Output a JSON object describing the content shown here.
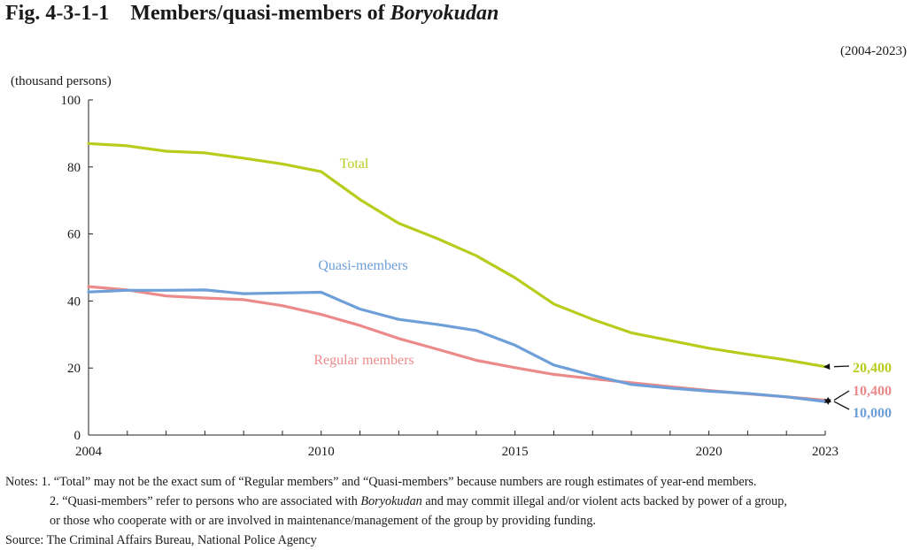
{
  "title": {
    "fig_label": "Fig. 4-3-1-1",
    "text": "Members/quasi-members of ",
    "text_italic": "Boryokudan"
  },
  "period": "(2004-2023)",
  "unit_label": "(thousand persons)",
  "chart_data": {
    "type": "line",
    "x": [
      2004,
      2005,
      2006,
      2007,
      2008,
      2009,
      2010,
      2011,
      2012,
      2013,
      2014,
      2015,
      2016,
      2017,
      2018,
      2019,
      2020,
      2021,
      2022,
      2023
    ],
    "x_ticks": [
      "2004",
      "2010",
      "2015",
      "2020",
      "2023"
    ],
    "y_ticks": [
      "0",
      "20",
      "40",
      "60",
      "80",
      "100"
    ],
    "ylim": [
      0,
      100
    ],
    "series": [
      {
        "name": "Total",
        "color": "#b8cc1e",
        "values": [
          87.0,
          86.3,
          84.7,
          84.2,
          82.6,
          80.9,
          78.6,
          70.3,
          63.2,
          58.6,
          53.5,
          46.9,
          39.1,
          34.5,
          30.5,
          28.2,
          25.9,
          24.1,
          22.4,
          20.4
        ],
        "end_value": "20,400"
      },
      {
        "name": "Quasi-members",
        "color": "#6e9fd8",
        "values": [
          42.7,
          43.2,
          43.2,
          43.3,
          42.2,
          42.4,
          42.6,
          37.6,
          34.5,
          33.0,
          31.2,
          26.8,
          20.9,
          17.8,
          15.1,
          14.0,
          13.1,
          12.4,
          11.4,
          10.0
        ],
        "end_value": "10,000"
      },
      {
        "name": "Regular members",
        "color": "#ec8a8a",
        "values": [
          44.3,
          43.3,
          41.5,
          40.9,
          40.4,
          38.6,
          36.0,
          32.7,
          28.8,
          25.6,
          22.3,
          20.1,
          18.1,
          16.8,
          15.6,
          14.4,
          13.3,
          12.3,
          11.4,
          10.4
        ],
        "end_value": "10,400"
      }
    ]
  },
  "notes": {
    "prefix": "Notes: 1. ",
    "n1": "“Total” may not be the exact sum of “Regular members” and “Quasi-members” because numbers are rough estimates of year-end members.",
    "n2_a": "2. “Quasi-members” refer to persons who are associated with ",
    "n2_ital": "Boryokudan",
    "n2_b": " and may commit illegal and/or violent acts backed by power of a group,",
    "n2_line2": "or those who cooperate with or are involved in maintenance/management of the group by providing funding.",
    "source": "Source: The Criminal Affairs Bureau, National Police Agency"
  }
}
